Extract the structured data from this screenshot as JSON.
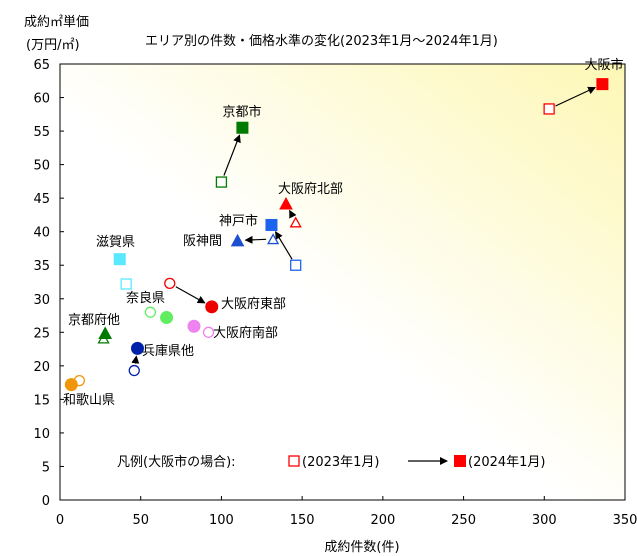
{
  "chart_data": {
    "type": "scatter",
    "title": "エリア別の件数・価格水準の変化(2023年1月～2024年1月)",
    "ylabel_line1": "成約㎡単価",
    "ylabel_line2": "(万円/㎡)",
    "xlabel": "成約件数(件)",
    "xlim": [
      0,
      350
    ],
    "ylim": [
      0,
      65
    ],
    "xticks": [
      0,
      50,
      100,
      150,
      200,
      250,
      300,
      350
    ],
    "yticks": [
      0,
      5,
      10,
      15,
      20,
      25,
      30,
      35,
      40,
      45,
      50,
      55,
      60,
      65
    ],
    "grid": false,
    "series": [
      {
        "name": "大阪市",
        "marker": "square",
        "color": "#ff0000",
        "from": [
          303,
          58.3
        ],
        "to": [
          336,
          62.0
        ],
        "arrow": true
      },
      {
        "name": "京都市",
        "marker": "square",
        "color": "#007a00",
        "from": [
          100,
          47.4
        ],
        "to": [
          113,
          55.5
        ],
        "arrow": true
      },
      {
        "name": "大阪府北部",
        "marker": "triangle",
        "color": "#ff0000",
        "from": [
          146,
          41.4
        ],
        "to": [
          140,
          44.2
        ],
        "arrow": true
      },
      {
        "name": "神戸市",
        "marker": "square",
        "color": "#1c64f0",
        "from": [
          146,
          35.0
        ],
        "to": [
          131,
          41.0
        ],
        "arrow": true
      },
      {
        "name": "阪神間",
        "marker": "triangle",
        "color": "#1c4fd0",
        "from": [
          132,
          38.9
        ],
        "to": [
          110,
          38.7
        ],
        "arrow": true
      },
      {
        "name": "滋賀県",
        "marker": "square",
        "color": "#5ae8ff",
        "from": [
          41,
          32.2
        ],
        "to": [
          37,
          35.9
        ],
        "arrow": false
      },
      {
        "name": "大阪府東部",
        "marker": "circle",
        "color": "#ee0000",
        "from": [
          68,
          32.3
        ],
        "to": [
          94,
          28.8
        ],
        "arrow": true
      },
      {
        "name": "奈良県",
        "marker": "circle",
        "color": "#60ee60",
        "from": [
          56,
          28.0
        ],
        "to": [
          66,
          27.2
        ],
        "arrow": false
      },
      {
        "name": "大阪府南部",
        "marker": "circle",
        "color": "#ee82ee",
        "from": [
          92,
          25.0
        ],
        "to": [
          83,
          25.9
        ],
        "arrow": false
      },
      {
        "name": "京都府他",
        "marker": "triangle",
        "color": "#007a00",
        "from": [
          27,
          24.1
        ],
        "to": [
          28,
          24.9
        ],
        "arrow": false
      },
      {
        "name": "兵庫県他",
        "marker": "circle",
        "color": "#0022aa",
        "from": [
          46,
          19.3
        ],
        "to": [
          48,
          22.6
        ],
        "arrow": true
      },
      {
        "name": "和歌山県",
        "marker": "circle",
        "color": "#f0960a",
        "from": [
          12,
          17.8
        ],
        "to": [
          7,
          17.2
        ],
        "arrow": false
      }
    ],
    "legend": {
      "prefix": "凡例(大阪市の場合):",
      "from_label": "(2023年1月)",
      "to_label": "(2024年1月)",
      "from_marker": "square-open",
      "to_marker": "square-filled",
      "color": "#ff0000"
    },
    "background": {
      "from": "#ffffff",
      "to": "#fdf7b5"
    }
  }
}
